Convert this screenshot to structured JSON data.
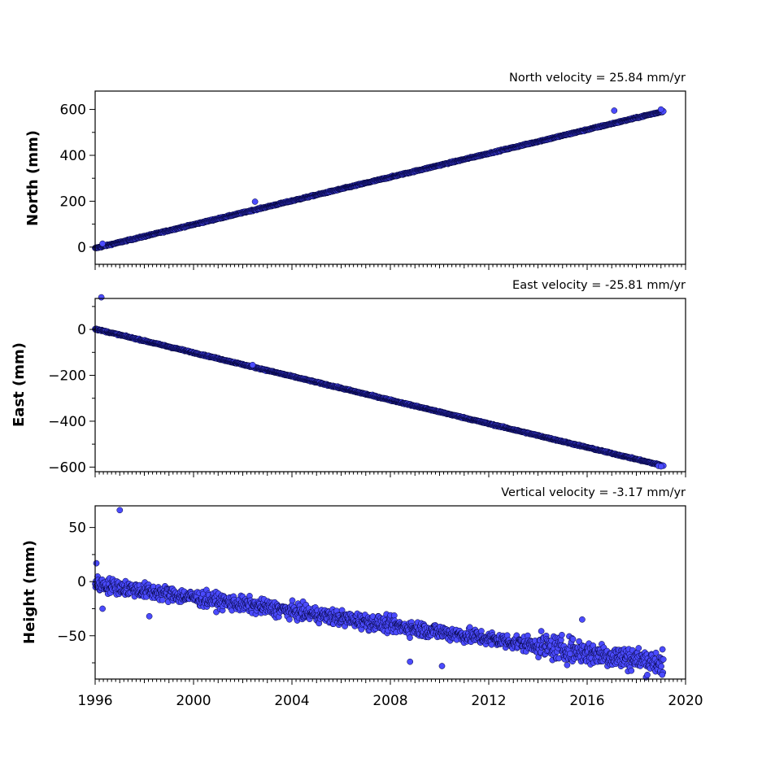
{
  "chart_data": {
    "type": "scatter",
    "marker_color": "#4B4BFF",
    "marker_edge_color": "#000033",
    "x_ticks": [
      "1996",
      "2000",
      "2004",
      "2008",
      "2012",
      "2016",
      "2020"
    ],
    "xlim": [
      1996,
      2020
    ],
    "panels": [
      {
        "ylabel": "North (mm)",
        "annotation": "North velocity = 25.84 mm/yr",
        "ylim": [
          -75,
          680
        ],
        "y_ticks": [
          0,
          200,
          400,
          600
        ],
        "y_tick_labels": [
          "0",
          "200",
          "400",
          "600"
        ],
        "series": {
          "start": 1996.0,
          "end": 2019.1,
          "x_step": 0.0167,
          "trend": {
            "intercept": -5,
            "slope": 25.84,
            "scatter": 2
          },
          "outliers": [
            [
              1996.3,
              15
            ],
            [
              2002.5,
              198
            ],
            [
              2017.1,
              595
            ],
            [
              2019.0,
              600
            ]
          ]
        }
      },
      {
        "ylabel": "East (mm)",
        "annotation": "East velocity = -25.81 mm/yr",
        "ylim": [
          -620,
          135
        ],
        "y_ticks": [
          0,
          -200,
          -400,
          -600
        ],
        "y_tick_labels": [
          "0",
          "−200",
          "−400",
          "−600"
        ],
        "series": {
          "start": 1996.0,
          "end": 2019.1,
          "x_step": 0.0167,
          "trend": {
            "intercept": 2,
            "slope": -25.81,
            "scatter": 2
          },
          "outliers": [
            [
              1996.25,
              140
            ],
            [
              2002.4,
              -155
            ],
            [
              2018.9,
              -595
            ],
            [
              2019.0,
              -597
            ]
          ]
        }
      },
      {
        "ylabel": "Height (mm)",
        "annotation": "Vertical velocity = -3.17 mm/yr",
        "ylim": [
          -90,
          70
        ],
        "y_ticks": [
          50,
          0,
          -50
        ],
        "y_tick_labels": [
          "50",
          "0",
          "−50"
        ],
        "series": {
          "start": 1996.0,
          "end": 2019.1,
          "x_step": 0.0167,
          "trend": {
            "intercept": -2,
            "slope": -3.17,
            "scatter": 5
          },
          "outliers": [
            [
              1996.05,
              17
            ],
            [
              1996.3,
              -25
            ],
            [
              1997.0,
              66
            ],
            [
              1998.2,
              -32
            ],
            [
              2008.8,
              -74
            ],
            [
              2010.1,
              -78
            ],
            [
              2015.8,
              -35
            ],
            [
              2019.05,
              -86
            ]
          ]
        }
      }
    ]
  }
}
